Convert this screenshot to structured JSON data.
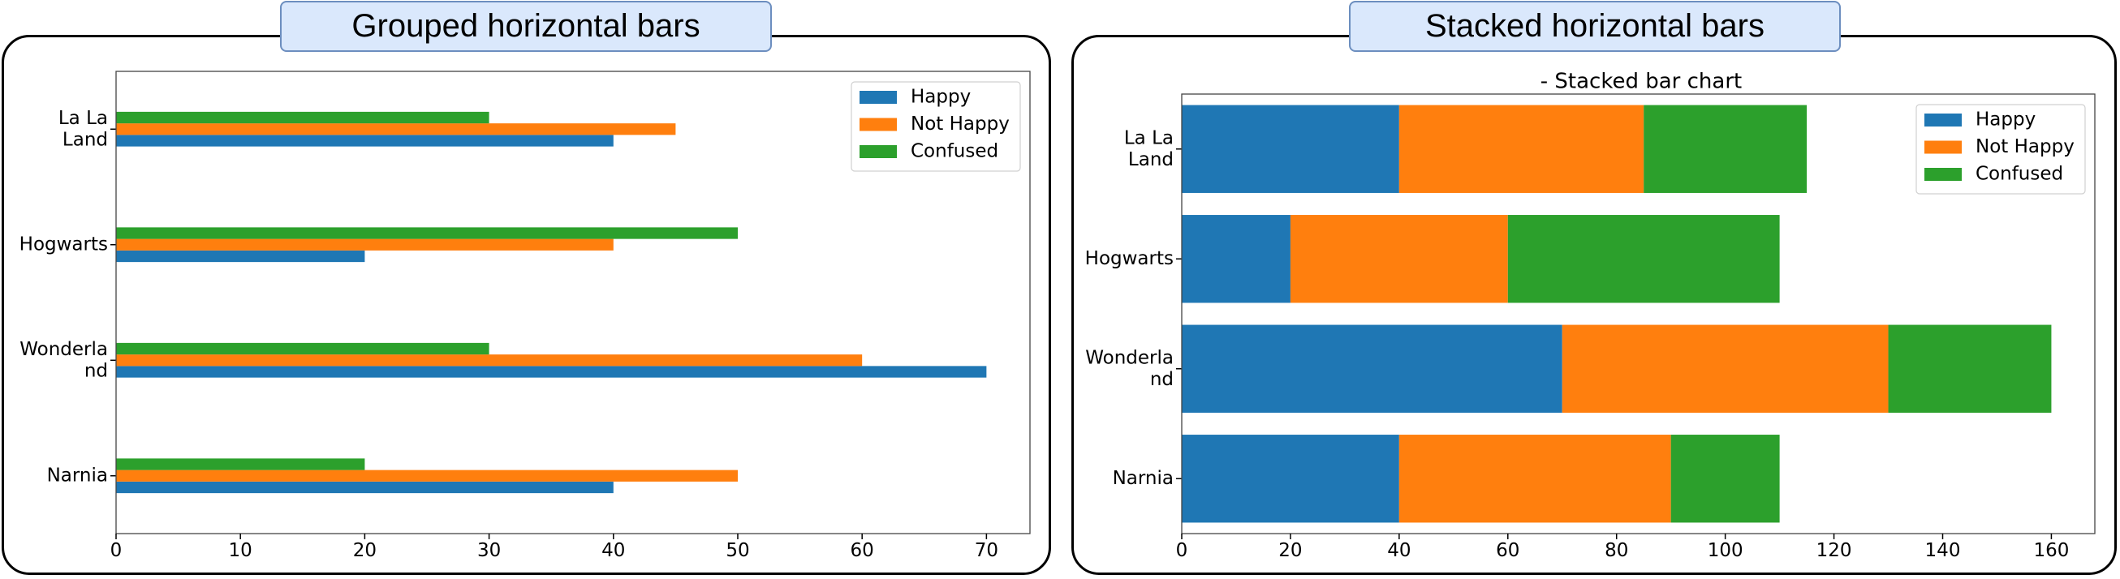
{
  "titles": {
    "left": "Grouped horizontal bars",
    "right": "Stacked horizontal bars"
  },
  "colors": {
    "Happy": "#1f77b4",
    "Not Happy": "#ff7f0e",
    "Confused": "#2ca02c"
  },
  "chart_data": [
    {
      "type": "bar",
      "orientation": "horizontal",
      "mode": "grouped",
      "title": "",
      "categories": [
        "La La\nLand",
        "Hogwarts",
        "Wonderla\nnd",
        "Narnia"
      ],
      "series": [
        {
          "name": "Happy",
          "values": [
            40,
            20,
            70,
            40
          ]
        },
        {
          "name": "Not Happy",
          "values": [
            45,
            40,
            60,
            50
          ]
        },
        {
          "name": "Confused",
          "values": [
            30,
            50,
            30,
            20
          ]
        }
      ],
      "xlim": [
        0,
        73.5
      ],
      "xticks": [
        0,
        10,
        20,
        30,
        40,
        50,
        60,
        70
      ],
      "legend": "top-right",
      "grid": false
    },
    {
      "type": "bar",
      "orientation": "horizontal",
      "mode": "stacked",
      "title": "- Stacked bar chart",
      "categories": [
        "La La\nLand",
        "Hogwarts",
        "Wonderla\nnd",
        "Narnia"
      ],
      "series": [
        {
          "name": "Happy",
          "values": [
            40,
            20,
            70,
            40
          ]
        },
        {
          "name": "Not Happy",
          "values": [
            45,
            40,
            60,
            50
          ]
        },
        {
          "name": "Confused",
          "values": [
            30,
            50,
            30,
            20
          ]
        }
      ],
      "xlim": [
        0,
        168
      ],
      "xticks": [
        0,
        20,
        40,
        60,
        80,
        100,
        120,
        140,
        160
      ],
      "legend": "top-right",
      "grid": false
    }
  ]
}
